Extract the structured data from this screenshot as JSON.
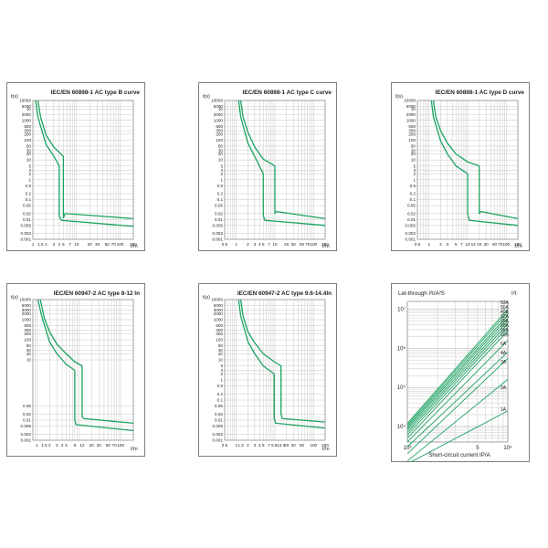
{
  "colors": {
    "curve": "#1aa260",
    "grid": "#c8c8c8",
    "frame": "#7d7d7d",
    "text": "#222222"
  },
  "chart_data": [
    {
      "type": "line",
      "title": "IEC/EN 60898-1 AC type B curve",
      "ylabel": "t(s)",
      "xlabel": "I/In",
      "y_ticks": [
        "10000",
        "5000",
        "1h",
        "2000",
        "1000",
        "500",
        "300",
        "200",
        "100",
        "50",
        "30",
        "20",
        "10",
        "5",
        "3",
        "2",
        "1",
        "0.5",
        "0.2",
        "0.1",
        "0.05",
        "0.02",
        "0.01",
        "0.005",
        "0.002",
        "0.001"
      ],
      "x_ticks": [
        "1",
        "1.5",
        "2",
        "3",
        "4",
        "5",
        "7",
        "10",
        "20",
        "30",
        "50",
        "70",
        "100",
        "200"
      ],
      "x_tick_vals": [
        1,
        1.5,
        2,
        3,
        4,
        5,
        7,
        10,
        20,
        30,
        50,
        70,
        100,
        200
      ],
      "xlim": [
        1,
        200
      ],
      "ylim": [
        0.001,
        10000
      ],
      "series": [
        {
          "name": "upper",
          "points": [
            [
              1.3,
              10000
            ],
            [
              1.5,
              1500
            ],
            [
              2,
              180
            ],
            [
              3,
              45
            ],
            [
              5,
              15
            ],
            [
              5,
              0.012
            ],
            [
              5.5,
              0.02
            ],
            [
              200,
              0.011
            ]
          ]
        },
        {
          "name": "lower",
          "points": [
            [
              1.15,
              10000
            ],
            [
              1.3,
              1500
            ],
            [
              2,
              60
            ],
            [
              3,
              16
            ],
            [
              4,
              5
            ],
            [
              4,
              0.015
            ],
            [
              4.5,
              0.009
            ],
            [
              200,
              0.0045
            ]
          ]
        }
      ]
    },
    {
      "type": "line",
      "title": "IEC/EN 60898-1 AC type C curve",
      "ylabel": "t(s)",
      "xlabel": "I/In",
      "y_ticks": [
        "10000",
        "5000",
        "1h",
        "2000",
        "1000",
        "500",
        "300",
        "200",
        "100",
        "50",
        "30",
        "20",
        "10",
        "5",
        "3",
        "2",
        "1",
        "0.5",
        "0.2",
        "0.1",
        "0.05",
        "0.02",
        "0.01",
        "0.005",
        "0.002",
        "0.001"
      ],
      "x_ticks": [
        "0.5",
        "1",
        "2",
        "3",
        "4",
        "5",
        "7",
        "10",
        "20",
        "30",
        "50",
        "70",
        "100",
        "200"
      ],
      "x_tick_vals": [
        0.5,
        1,
        2,
        3,
        4,
        5,
        7,
        10,
        20,
        30,
        50,
        70,
        100,
        200
      ],
      "xlim": [
        0.5,
        200
      ],
      "ylim": [
        0.001,
        10000
      ],
      "series": [
        {
          "name": "upper",
          "points": [
            [
              1.3,
              10000
            ],
            [
              1.5,
              1500
            ],
            [
              2,
              250
            ],
            [
              3,
              45
            ],
            [
              5,
              11
            ],
            [
              10,
              5
            ],
            [
              10,
              0.02
            ],
            [
              11,
              0.025
            ],
            [
              200,
              0.011
            ]
          ]
        },
        {
          "name": "lower",
          "points": [
            [
              1.15,
              10000
            ],
            [
              1.3,
              1500
            ],
            [
              2,
              70
            ],
            [
              3,
              15
            ],
            [
              5,
              2
            ],
            [
              5,
              0.016
            ],
            [
              5.5,
              0.009
            ],
            [
              200,
              0.005
            ]
          ]
        }
      ]
    },
    {
      "type": "line",
      "title": "IEC/EN 60898-1 AC type D curve",
      "ylabel": "t(s)",
      "xlabel": "I/In",
      "y_ticks": [
        "10000",
        "5000",
        "1h",
        "2000",
        "1000",
        "500",
        "300",
        "200",
        "100",
        "50",
        "30",
        "20",
        "10",
        "5",
        "3",
        "2",
        "1",
        "0.5",
        "0.2",
        "0.1",
        "0.05",
        "0.02",
        "0.01",
        "0.005",
        "0.002",
        "0.001"
      ],
      "x_ticks": [
        "0.5",
        "1",
        "2",
        "3",
        "5",
        "7",
        "10",
        "14",
        "20",
        "30",
        "50",
        "70",
        "100",
        "200"
      ],
      "x_tick_vals": [
        0.5,
        1,
        2,
        3,
        5,
        7,
        10,
        14,
        20,
        30,
        50,
        70,
        100,
        200
      ],
      "xlim": [
        0.5,
        200
      ],
      "ylim": [
        0.001,
        10000
      ],
      "series": [
        {
          "name": "upper",
          "points": [
            [
              1.3,
              10000
            ],
            [
              1.5,
              1500
            ],
            [
              2,
              300
            ],
            [
              3,
              70
            ],
            [
              5,
              20
            ],
            [
              10,
              8
            ],
            [
              20,
              5
            ],
            [
              20,
              0.02
            ],
            [
              22,
              0.025
            ],
            [
              200,
              0.011
            ]
          ]
        },
        {
          "name": "lower",
          "points": [
            [
              1.15,
              10000
            ],
            [
              1.3,
              1500
            ],
            [
              2,
              90
            ],
            [
              3,
              20
            ],
            [
              5,
              5
            ],
            [
              10,
              2
            ],
            [
              10,
              0.02
            ],
            [
              11,
              0.009
            ],
            [
              200,
              0.005
            ]
          ]
        }
      ]
    },
    {
      "type": "line",
      "title": "IEC/EN 60947-2 AC type 8-12 In",
      "ylabel": "t(s)",
      "xlabel": "I/In",
      "y_ticks": [
        "10000",
        "5000",
        "3000",
        "2000",
        "1000",
        "500",
        "300",
        "200",
        "100",
        "50",
        "30",
        "20",
        "10",
        "0.05",
        "0.02",
        "0.01",
        "0.005",
        "0.002",
        "0.001"
      ],
      "x_ticks": [
        "1",
        "1.5",
        "2",
        "3",
        "4",
        "5",
        "8",
        "12",
        "20",
        "30",
        "50",
        "70",
        "100"
      ],
      "x_tick_vals": [
        1,
        1.5,
        2,
        3,
        4,
        5,
        8,
        12,
        20,
        30,
        50,
        70,
        100
      ],
      "xlim": [
        0.8,
        200
      ],
      "ylim": [
        0.001,
        10000
      ],
      "series": [
        {
          "name": "upper",
          "points": [
            [
              1.2,
              10000
            ],
            [
              1.5,
              1200
            ],
            [
              2,
              250
            ],
            [
              3,
              60
            ],
            [
              5,
              20
            ],
            [
              8,
              8
            ],
            [
              12,
              5
            ],
            [
              12,
              0.015
            ],
            [
              13,
              0.012
            ],
            [
              200,
              0.007
            ]
          ]
        },
        {
          "name": "lower",
          "points": [
            [
              1.05,
              10000
            ],
            [
              1.3,
              1500
            ],
            [
              2,
              80
            ],
            [
              3,
              20
            ],
            [
              5,
              6
            ],
            [
              8,
              3
            ],
            [
              8,
              0.01
            ],
            [
              8.5,
              0.006
            ],
            [
              200,
              0.003
            ]
          ]
        }
      ]
    },
    {
      "type": "line",
      "title": "IEC/EN 60947-2 AC type 9.6-14.4In",
      "ylabel": "t(s)",
      "xlabel": "I/In",
      "y_ticks": [
        "10000",
        "5000",
        "3000",
        "2000",
        "1000",
        "500",
        "300",
        "200",
        "100",
        "50",
        "30",
        "20",
        "10",
        "5",
        "3",
        "2",
        "1",
        "0.5",
        "0.2",
        "0.1",
        "0.05",
        "0.02",
        "0.01",
        "0.005",
        "0.002",
        "0.001"
      ],
      "x_ticks": [
        "0.5",
        "1",
        "1.3",
        "2",
        "3",
        "4",
        "5",
        "7",
        "9.6",
        "14.4",
        "20",
        "30",
        "50",
        "100",
        "200"
      ],
      "x_tick_vals": [
        0.5,
        1,
        1.3,
        2,
        3,
        4,
        5,
        7,
        9.6,
        14.4,
        20,
        30,
        50,
        100,
        200
      ],
      "xlim": [
        0.5,
        200
      ],
      "ylim": [
        0.001,
        10000
      ],
      "series": [
        {
          "name": "upper",
          "points": [
            [
              1.3,
              10000
            ],
            [
              1.5,
              1500
            ],
            [
              2,
              250
            ],
            [
              3,
              70
            ],
            [
              5,
              20
            ],
            [
              9.6,
              8
            ],
            [
              14.4,
              5
            ],
            [
              14.4,
              0.02
            ],
            [
              15.5,
              0.012
            ],
            [
              200,
              0.008
            ]
          ]
        },
        {
          "name": "lower",
          "points": [
            [
              1.15,
              10000
            ],
            [
              1.3,
              1500
            ],
            [
              2,
              80
            ],
            [
              3,
              20
            ],
            [
              5,
              5
            ],
            [
              9.6,
              2
            ],
            [
              9.6,
              0.012
            ],
            [
              10.5,
              0.007
            ],
            [
              200,
              0.004
            ]
          ]
        }
      ]
    },
    {
      "type": "line",
      "title": "Let-through I²t/A²S",
      "corner_label": "I²t",
      "xlabel": "Short-circuit current IP/A",
      "y_ticks": [
        "10⁷",
        "10⁶",
        "10⁵",
        "10⁴"
      ],
      "x_ticks": [
        "10³",
        "5",
        "10⁴"
      ],
      "series_labels": [
        "63A",
        "50A",
        "40A",
        "32A",
        "25A",
        "20A",
        "16A",
        "10A",
        "6A",
        "4A",
        "3A",
        "2A",
        "1A"
      ],
      "series": [
        {
          "name": "63A",
          "points": [
            [
              1000,
              12000
            ],
            [
              10000,
              10000000
            ]
          ]
        },
        {
          "name": "50A",
          "points": [
            [
              1000,
              11000
            ],
            [
              10000,
              8500000
            ]
          ]
        },
        {
          "name": "40A",
          "points": [
            [
              1000,
              10000
            ],
            [
              10000,
              7000000
            ]
          ]
        },
        {
          "name": "32A",
          "points": [
            [
              1000,
              9000
            ],
            [
              10000,
              6000000
            ]
          ]
        },
        {
          "name": "25A",
          "points": [
            [
              1000,
              8000
            ],
            [
              10000,
              5000000
            ]
          ]
        },
        {
          "name": "20A",
          "points": [
            [
              1000,
              7000
            ],
            [
              10000,
              4200000
            ]
          ]
        },
        {
          "name": "16A",
          "points": [
            [
              1000,
              6000
            ],
            [
              10000,
              3500000
            ]
          ]
        },
        {
          "name": "10A",
          "points": [
            [
              1000,
              5000
            ],
            [
              10000,
              2800000
            ]
          ]
        },
        {
          "name": "6A",
          "points": [
            [
              1000,
              4000
            ],
            [
              10000,
              1600000
            ]
          ]
        },
        {
          "name": "4A",
          "points": [
            [
              1000,
              3000
            ],
            [
              10000,
              800000
            ]
          ]
        },
        {
          "name": "3A",
          "points": [
            [
              1000,
              2000
            ],
            [
              10000,
              550000
            ]
          ]
        },
        {
          "name": "2A",
          "points": [
            [
              1000,
              1300
            ],
            [
              10000,
              160000
            ]
          ]
        },
        {
          "name": "1A",
          "points": [
            [
              1000,
              1100
            ],
            [
              10000,
              25000
            ]
          ]
        }
      ]
    }
  ]
}
